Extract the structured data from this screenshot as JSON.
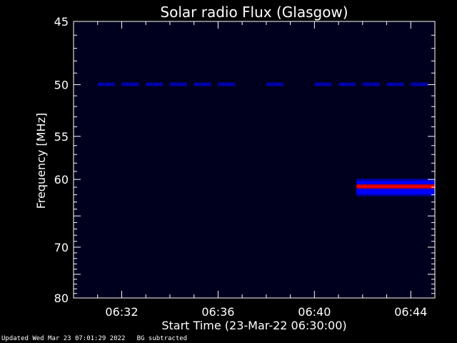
{
  "chart_data": {
    "type": "heatmap",
    "title": "Solar radio Flux (Glasgow)",
    "xlabel": "Start Time (23-Mar-22 06:30:00)",
    "ylabel": "Frequency [MHz]",
    "xlim": [
      "06:30:00",
      "06:45:00"
    ],
    "ylim": [
      45,
      80
    ],
    "ytick_values": [
      45,
      50,
      55,
      60,
      70,
      80
    ],
    "ytick_labels": [
      "45",
      "50",
      "55",
      "60",
      "70",
      "80"
    ],
    "xtick_values": [
      "06:32",
      "06:36",
      "06:40",
      "06:44"
    ],
    "xtick_labels": [
      "06:32",
      "06:36",
      "06:40",
      "06:44"
    ],
    "y_scale": "reciprocal",
    "grid": false,
    "background_color": "#00001e",
    "emission_band": {
      "start_time": "06:41:45",
      "end_time": "06:45:00",
      "freq_low": 59.9,
      "freq_high": 62.2,
      "peak_freq": 60.9,
      "colors": [
        "#0000a0",
        "#0000ff",
        "#c00000",
        "#ff0000"
      ]
    },
    "interference_freq": 50.0,
    "interference_times": [
      "06:31",
      "06:32",
      "06:33",
      "06:34",
      "06:35",
      "06:36",
      "06:38",
      "06:40",
      "06:41",
      "06:42",
      "06:43",
      "06:44"
    ]
  },
  "footer": {
    "updated": "Updated Wed Mar 23 07:01:29 2022",
    "note": "BG subtracted"
  }
}
